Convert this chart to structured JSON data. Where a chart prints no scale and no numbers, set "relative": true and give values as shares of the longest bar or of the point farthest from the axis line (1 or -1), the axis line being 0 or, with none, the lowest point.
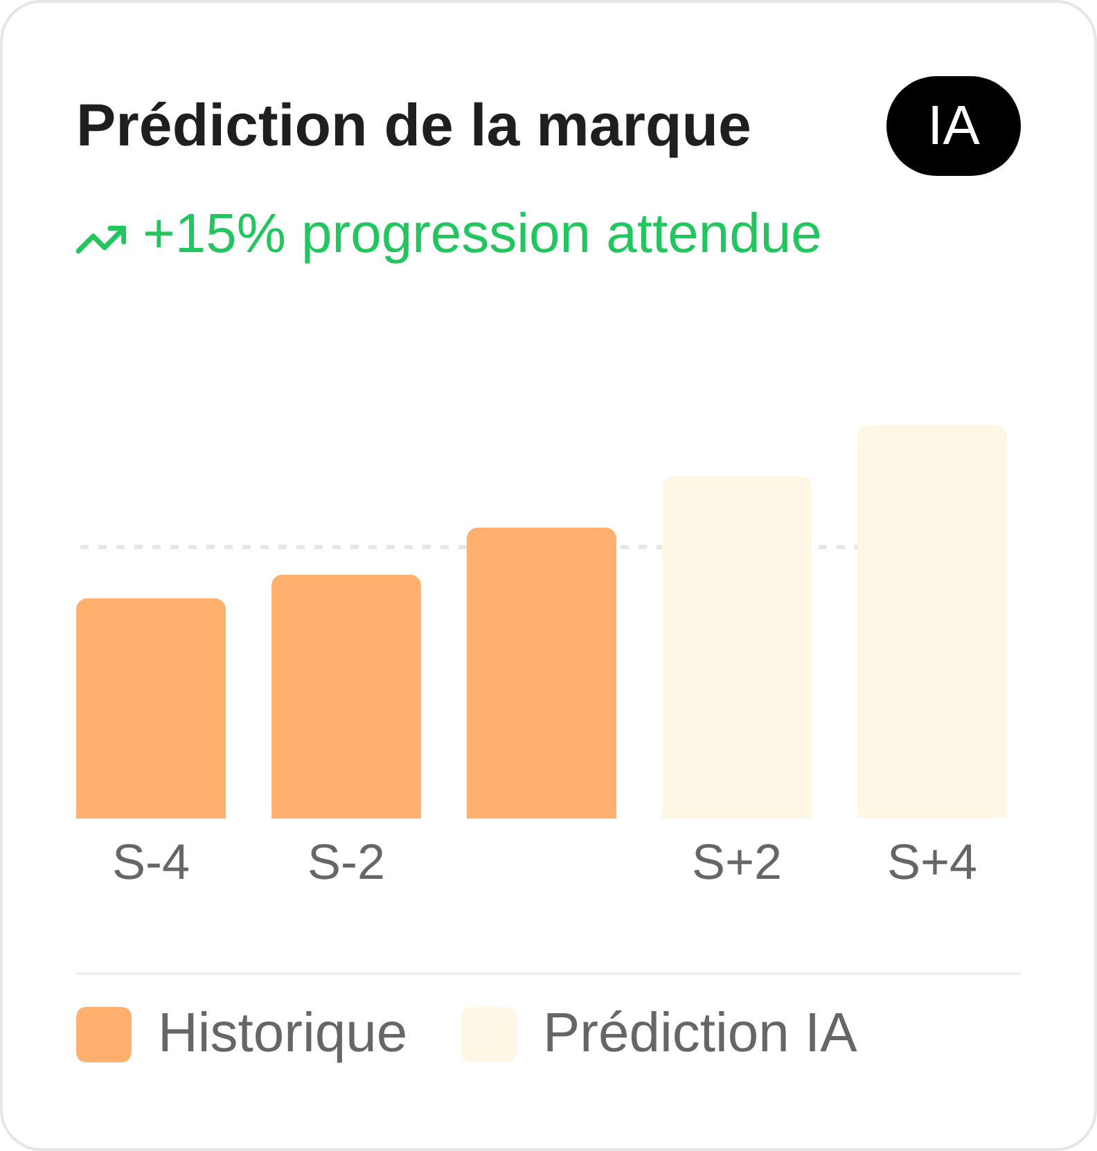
{
  "chart_data": {
    "type": "bar",
    "title": "Prédiction de la marque",
    "subtitle": "+15% progression attendue",
    "annotations": [
      "IA"
    ],
    "categories": [
      "S-4",
      "S-2",
      null,
      "S+2",
      "S+4"
    ],
    "relative": true,
    "series": [
      {
        "name": "Historique",
        "color": "#ffaf6e",
        "values": [
          0.56,
          0.62,
          0.74,
          null,
          null
        ]
      },
      {
        "name": "Prédiction IA",
        "color": "#fff7e6",
        "values": [
          null,
          null,
          null,
          0.87,
          1
        ]
      }
    ],
    "ref_lines": [
      {
        "axis": "y",
        "value": 0.69,
        "color": "#e6e6e6",
        "line_style": "dotted"
      }
    ],
    "legend": "bottom"
  }
}
